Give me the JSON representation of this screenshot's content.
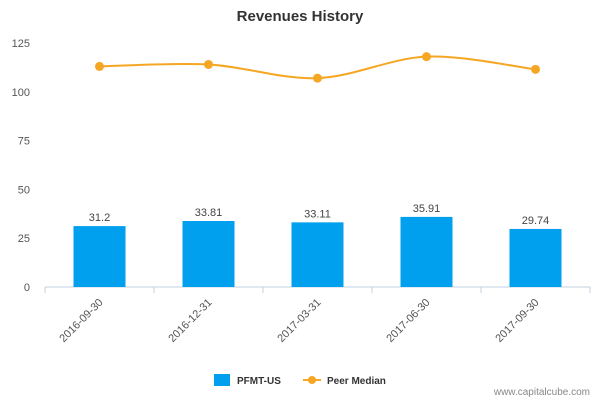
{
  "chart_data": {
    "type": "bar",
    "title": "Revenues History",
    "xlabel": "",
    "ylabel": "",
    "categories": [
      "2016-09-30",
      "2016-12-31",
      "2017-03-31",
      "2017-06-30",
      "2017-09-30"
    ],
    "ylim": [
      0,
      125
    ],
    "yticks": [
      0,
      25,
      50,
      75,
      100,
      125
    ],
    "grid": false,
    "legend_position": "bottom-center",
    "series": [
      {
        "name": "PFMT-US",
        "type": "bar",
        "color": "#00a0ee",
        "values": [
          31.2,
          33.81,
          33.11,
          35.91,
          29.74
        ],
        "labels": [
          "31.2",
          "33.81",
          "33.11",
          "35.91",
          "29.74"
        ]
      },
      {
        "name": "Peer Median",
        "type": "line",
        "color": "#f5a623",
        "values": [
          113,
          114,
          107,
          118,
          111.5
        ]
      }
    ]
  },
  "credit": "www.capitalcube.com"
}
